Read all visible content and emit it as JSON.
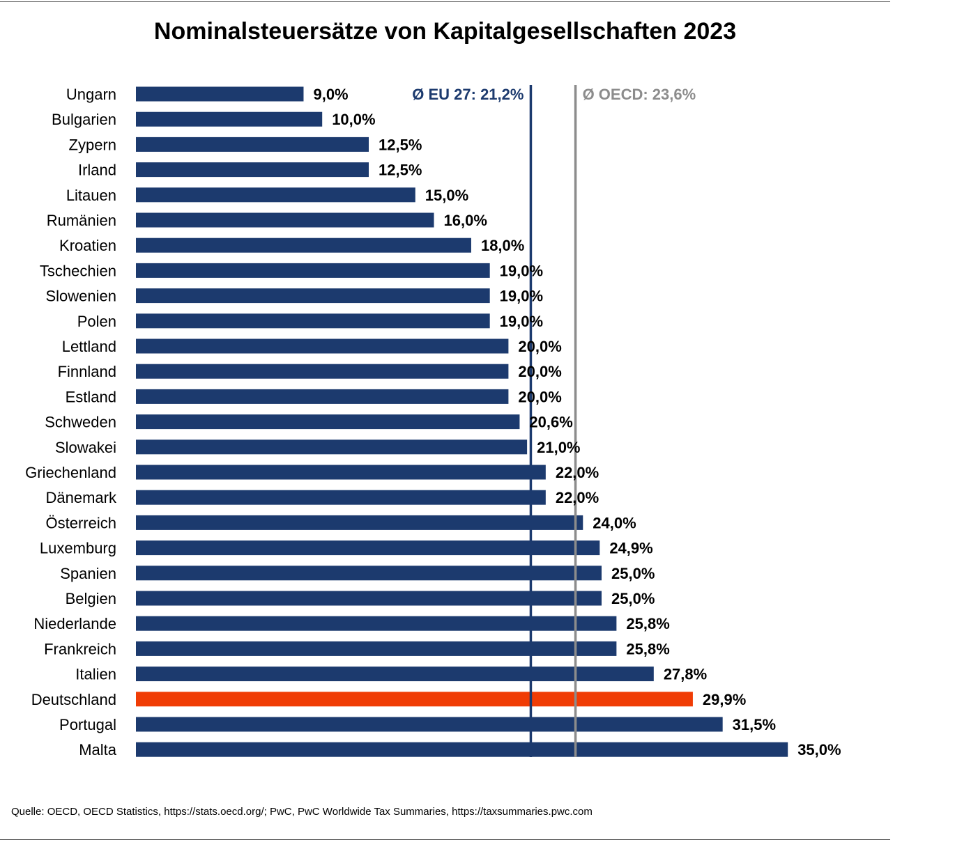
{
  "chart_data": {
    "type": "bar",
    "orientation": "horizontal",
    "title": "Nominalsteuersätze von Kapitalgesellschaften 2023",
    "categories": [
      "Ungarn",
      "Bulgarien",
      "Zypern",
      "Irland",
      "Litauen",
      "Rumänien",
      "Kroatien",
      "Tschechien",
      "Slowenien",
      "Polen",
      "Lettland",
      "Finnland",
      "Estland",
      "Schweden",
      "Slowakei",
      "Griechenland",
      "Dänemark",
      "Österreich",
      "Luxemburg",
      "Spanien",
      "Belgien",
      "Niederlande",
      "Frankreich",
      "Italien",
      "Deutschland",
      "Portugal",
      "Malta"
    ],
    "values": [
      9.0,
      10.0,
      12.5,
      12.5,
      15.0,
      16.0,
      18.0,
      19.0,
      19.0,
      19.0,
      20.0,
      20.0,
      20.0,
      20.6,
      21.0,
      22.0,
      22.0,
      24.0,
      24.9,
      25.0,
      25.0,
      25.8,
      25.8,
      27.8,
      29.9,
      31.5,
      35.0
    ],
    "value_labels": [
      "9,0%",
      "10,0%",
      "12,5%",
      "12,5%",
      "15,0%",
      "16,0%",
      "18,0%",
      "19,0%",
      "19,0%",
      "19,0%",
      "20,0%",
      "20,0%",
      "20,0%",
      "20,6%",
      "21,0%",
      "22,0%",
      "22,0%",
      "24,0%",
      "24,9%",
      "25,0%",
      "25,0%",
      "25,8%",
      "25,8%",
      "27,8%",
      "29,9%",
      "31,5%",
      "35,0%"
    ],
    "highlight": "Deutschland",
    "colors": {
      "bar": "#1c3a6e",
      "highlight": "#f03c05",
      "eu_line": "#1c3a6e",
      "oecd_line": "#8c8c8c"
    },
    "reference_lines": [
      {
        "label": "Ø EU 27: 21,2%",
        "value": 21.2,
        "color": "#1c3a6e"
      },
      {
        "label": "Ø OECD: 23,6%",
        "value": 23.6,
        "color": "#8c8c8c"
      }
    ],
    "xlim": [
      0,
      35
    ],
    "grid": false,
    "legend": "none"
  },
  "source": "Quelle: OECD, OECD Statistics, https://stats.oecd.org/; PwC, PwC Worldwide Tax Summaries, https://taxsummaries.pwc.com"
}
